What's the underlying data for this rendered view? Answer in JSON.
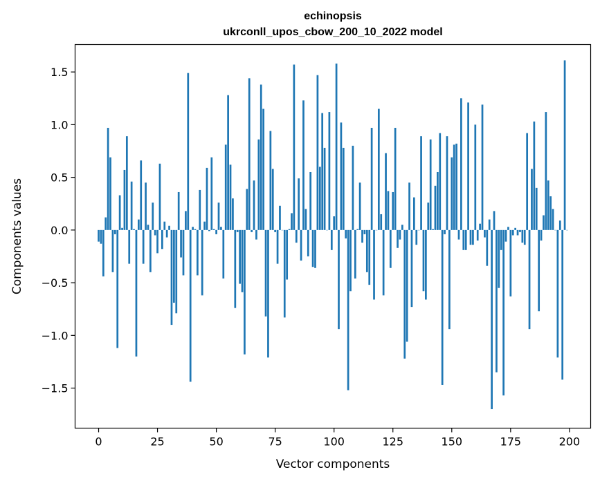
{
  "chart_data": {
    "type": "bar",
    "title": "echinopsis",
    "subtitle": "ukrconll_upos_cbow_200_10_2022 model",
    "xlabel": "Vector components",
    "ylabel": "Components values",
    "xlim": [
      -10,
      209
    ],
    "ylim": [
      -1.88,
      1.76
    ],
    "xticks": [
      0,
      25,
      50,
      75,
      100,
      125,
      150,
      175,
      200
    ],
    "yticks": [
      -1.5,
      -1.0,
      -0.5,
      0.0,
      0.5,
      1.0,
      1.5
    ],
    "ytick_labels": [
      "−1.5",
      "−1.0",
      "−0.5",
      "0.0",
      "0.5",
      "1.0",
      "1.5"
    ],
    "bar_color": "#1f77b4",
    "grid": false,
    "values": [
      -0.11,
      -0.13,
      -0.44,
      0.12,
      0.97,
      0.69,
      -0.4,
      -0.04,
      -1.12,
      0.33,
      0.02,
      0.57,
      0.89,
      -0.32,
      0.46,
      0.01,
      -1.2,
      0.1,
      0.66,
      -0.32,
      0.45,
      0.05,
      -0.4,
      0.26,
      -0.05,
      -0.22,
      0.63,
      -0.18,
      0.08,
      -0.07,
      0.04,
      -0.9,
      -0.69,
      -0.79,
      0.36,
      -0.26,
      -0.43,
      0.18,
      1.49,
      -1.44,
      0.03,
      0.01,
      -0.43,
      0.38,
      -0.62,
      0.08,
      0.59,
      -0.01,
      0.69,
      0.01,
      -0.04,
      0.26,
      0.03,
      -0.46,
      0.81,
      1.28,
      0.62,
      0.3,
      -0.74,
      -0.02,
      -0.51,
      -0.59,
      -1.18,
      0.39,
      1.44,
      -0.02,
      0.47,
      -0.09,
      0.86,
      1.38,
      1.15,
      -0.82,
      -1.21,
      0.94,
      0.58,
      -0.02,
      -0.32,
      0.23,
      0.0,
      -0.83,
      -0.47,
      0.01,
      0.16,
      1.57,
      -0.12,
      0.49,
      -0.29,
      1.23,
      0.2,
      -0.25,
      0.55,
      -0.35,
      -0.36,
      1.47,
      0.6,
      1.11,
      0.78,
      0.0,
      1.12,
      -0.19,
      0.13,
      1.58,
      -0.94,
      1.02,
      0.78,
      -0.08,
      -1.52,
      -0.58,
      0.8,
      -0.46,
      0.01,
      0.45,
      -0.12,
      -0.04,
      -0.4,
      -0.52,
      0.97,
      -0.66,
      0.0,
      1.15,
      0.15,
      -0.62,
      0.73,
      0.37,
      -0.36,
      0.36,
      0.97,
      -0.17,
      -0.09,
      0.05,
      -1.22,
      -1.06,
      0.45,
      -0.73,
      0.31,
      -0.14,
      0.0,
      0.89,
      -0.58,
      -0.66,
      0.26,
      0.86,
      0.01,
      0.42,
      0.55,
      0.92,
      -1.47,
      -0.04,
      0.89,
      -0.94,
      0.69,
      0.81,
      0.82,
      -0.09,
      1.25,
      -0.19,
      -0.19,
      1.21,
      -0.14,
      -0.14,
      1.0,
      -0.1,
      0.06,
      1.19,
      -0.07,
      -0.34,
      0.1,
      -1.7,
      0.18,
      -1.35,
      -0.55,
      -0.19,
      -1.57,
      -0.11,
      0.03,
      -0.63,
      -0.05,
      0.02,
      -0.05,
      -0.02,
      -0.12,
      -0.14,
      0.92,
      -0.94,
      0.58,
      1.03,
      0.4,
      -0.77,
      -0.1,
      0.14,
      1.12,
      0.47,
      0.32,
      0.2,
      0.0,
      -1.21,
      0.09,
      -1.42,
      1.61,
      0.0
    ]
  }
}
